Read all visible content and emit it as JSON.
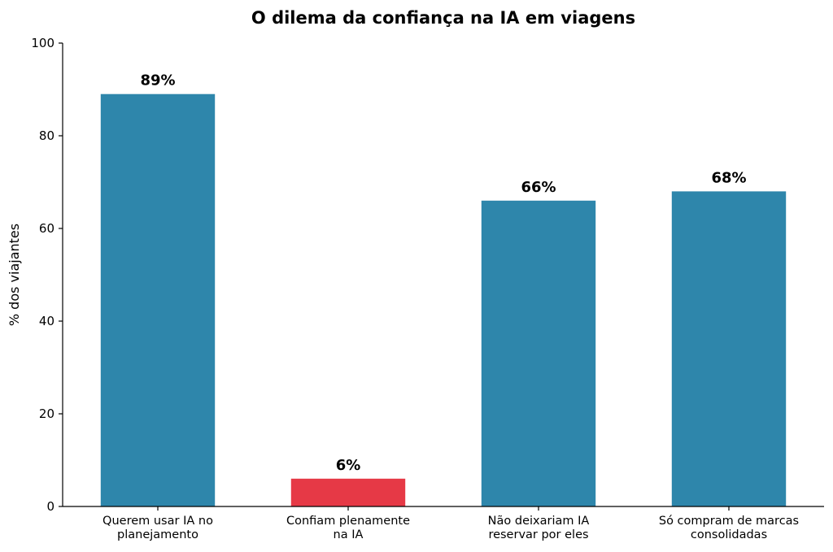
{
  "chart_data": {
    "type": "bar",
    "title": "O dilema da confiança na IA em viagens",
    "xlabel": "",
    "ylabel": "% dos viajantes",
    "ylim": [
      0,
      100
    ],
    "yticks": [
      "0",
      "20",
      "40",
      "60",
      "80",
      "100"
    ],
    "grid": false,
    "categories": [
      [
        "Querem usar IA no",
        "planejamento"
      ],
      [
        "Confiam plenamente",
        "na IA"
      ],
      [
        "Não deixariam IA",
        "reservar por eles"
      ],
      [
        "Só compram de marcas",
        "consolidadas"
      ]
    ],
    "values": [
      89,
      6,
      66,
      68
    ],
    "data_labels": [
      "89%",
      "6%",
      "66%",
      "68%"
    ],
    "colors": [
      "#2e86ab",
      "#e63946",
      "#2e86ab",
      "#2e86ab"
    ]
  }
}
